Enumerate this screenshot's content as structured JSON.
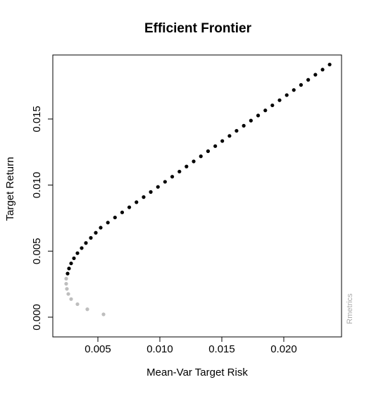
{
  "chart_data": {
    "type": "scatter",
    "title": "Efficient Frontier",
    "x_label": "Mean-Var Target Risk",
    "y_label": "Target Return",
    "annotation": "Rmetrics",
    "xlim": [
      0.001364,
      0.02466
    ],
    "ylim": [
      -0.001494,
      0.01985
    ],
    "xticks": [
      0.005,
      {
        "value": 0.01,
        "label": "0.010"
      },
      0.015,
      {
        "value": 0.02,
        "label": "0.020"
      }
    ],
    "yticks": [
      {
        "value": 0,
        "label": "0.000"
      },
      0.005,
      {
        "value": 0.01,
        "label": "0.010"
      },
      0.015
    ],
    "series": [
      {
        "color": "#bebebe",
        "x": [
          0.005455,
          0.004148,
          0.003352,
          0.002841,
          0.002614,
          0.0025,
          0.002443,
          0.002443
        ],
        "values": [
          0.000213,
          0.000599,
          0.000985,
          0.001371,
          0.001757,
          0.002143,
          0.002529,
          0.002915
        ]
      },
      {
        "color": "#000000",
        "x": [
          0.002557,
          0.00267,
          0.002841,
          0.003068,
          0.003352,
          0.003693,
          0.004034,
          0.004432,
          0.00483,
          0.005227,
          0.005807,
          0.006381,
          0.00696,
          0.007534,
          0.008114,
          0.008693,
          0.009267,
          0.009847,
          0.01042,
          0.011,
          0.01158,
          0.01215,
          0.01273,
          0.01331,
          0.01389,
          0.01447,
          0.01504,
          0.01562,
          0.01619,
          0.01677,
          0.01735,
          0.01793,
          0.01851,
          0.01908,
          0.01966,
          0.02024,
          0.02081,
          0.02139,
          0.02197,
          0.02255,
          0.02313,
          0.0237
        ],
        "values": [
          0.003301,
          0.003687,
          0.004073,
          0.004459,
          0.004845,
          0.005231,
          0.005617,
          0.006003,
          0.006389,
          0.006775,
          0.007161,
          0.007547,
          0.007933,
          0.008319,
          0.008705,
          0.009091,
          0.009477,
          0.009863,
          0.010249,
          0.010635,
          0.011021,
          0.011407,
          0.011793,
          0.012179,
          0.012565,
          0.012951,
          0.013337,
          0.013723,
          0.014109,
          0.014495,
          0.014881,
          0.015267,
          0.015653,
          0.016039,
          0.016425,
          0.016811,
          0.017197,
          0.017583,
          0.017969,
          0.018355,
          0.018741,
          0.019127
        ]
      }
    ]
  }
}
